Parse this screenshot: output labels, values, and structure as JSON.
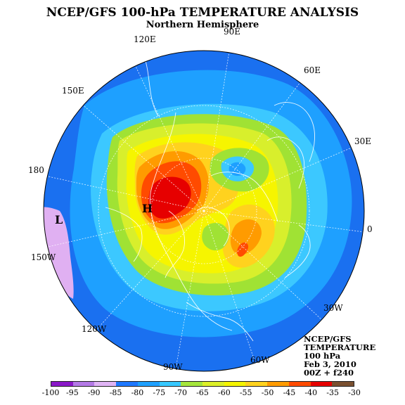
{
  "title": "NCEP/GFS 100-hPa TEMPERATURE ANALYSIS",
  "subtitle": "Northern Hemisphere",
  "longitude_labels": {
    "lon_90e": "90E",
    "lon_60e": "60E",
    "lon_30e": "30E",
    "lon_0": "0",
    "lon_30w": "30W",
    "lon_60w": "60W",
    "lon_90w": "90W",
    "lon_120w": "120W",
    "lon_150w": "150W",
    "lon_180": "180",
    "lon_150e": "150E",
    "lon_120e": "120E"
  },
  "centers": {
    "high": "H",
    "low": "L"
  },
  "info": {
    "line1": "NCEP/GFS",
    "line2": "TEMPERATURE",
    "line3": "100 hPa",
    "line4": "Feb 3, 2010",
    "line5": "00Z + f240"
  },
  "colorbar": {
    "labels": [
      "-100",
      "-95",
      "-90",
      "-85",
      "-80",
      "-75",
      "-70",
      "-65",
      "-60",
      "-55",
      "-50",
      "-45",
      "-40",
      "-35",
      "-30"
    ],
    "colors": [
      "#8a18c8",
      "#b47ae6",
      "#e0b4f5",
      "#1e78ff",
      "#1ea0ff",
      "#37c8ff",
      "#a5e63c",
      "#dcf028",
      "#f5f500",
      "#ffd21e",
      "#ff9b00",
      "#ff4b00",
      "#e60000",
      "#7a5030"
    ]
  },
  "palette": {
    "ocean_blue": "#1a70f0",
    "mid_blue": "#1ea0ff",
    "light_blue": "#3cc8ff",
    "green": "#a0e234",
    "yellow_green": "#d8ef2c",
    "yellow": "#f6f500",
    "gold": "#ffd21e",
    "orange": "#ff9b00",
    "red_orange": "#ff4b00",
    "red": "#e60000",
    "lavender": "#e0b0f2"
  }
}
